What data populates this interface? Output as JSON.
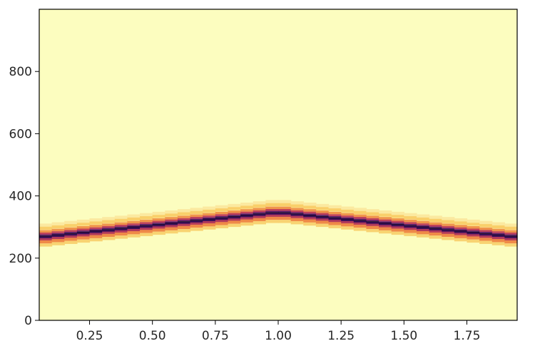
{
  "chart_data": {
    "type": "heatmap",
    "title": "",
    "xlabel": "",
    "ylabel": "",
    "xlim": [
      0.05,
      1.95
    ],
    "ylim": [
      0,
      1000
    ],
    "xticks": [
      0.25,
      0.5,
      0.75,
      1.0,
      1.25,
      1.5,
      1.75
    ],
    "xtick_labels": [
      "0.25",
      "0.50",
      "0.75",
      "1.00",
      "1.25",
      "1.50",
      "1.75"
    ],
    "yticks": [
      0,
      200,
      400,
      600,
      800
    ],
    "ytick_labels": [
      "0",
      "200",
      "400",
      "600",
      "800"
    ],
    "colormap": "inferno_r",
    "background_color": "#fcfdbf",
    "ridge": {
      "x": [
        0.05,
        1.0,
        1.95
      ],
      "y": [
        270,
        350,
        270
      ]
    },
    "grid": false,
    "legend": "none"
  }
}
